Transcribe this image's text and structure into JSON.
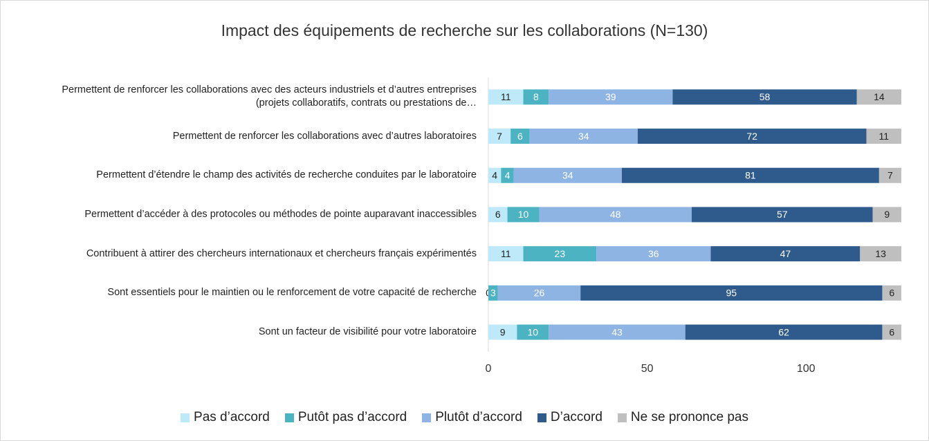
{
  "chart_data": {
    "type": "stacked_barh",
    "title": "Impact des équipements de recherche sur les collaborations (N=130)",
    "categories": [
      "Permettent de renforcer les collaborations avec des acteurs industriels et d’autres entreprises (projets collaboratifs, contrats ou prestations de…",
      "Permettent de renforcer les collaborations avec d’autres laboratoires",
      "Permettent d’étendre le champ des activités de recherche conduites par le laboratoire",
      "Permettent d’accéder à des protocoles ou méthodes de pointe auparavant inaccessibles",
      "Contribuent à attirer des chercheurs internationaux et chercheurs français expérimentés",
      "Sont essentiels pour le maintien ou le renforcement de votre capacité de recherche",
      "Sont un facteur de visibilité pour votre laboratoire"
    ],
    "series": [
      {
        "name": "Pas d’accord",
        "color": "#bde9f8",
        "values": [
          11,
          7,
          4,
          6,
          11,
          0,
          9
        ]
      },
      {
        "name": "Putôt pas d’accord",
        "color": "#4bb3c2",
        "values": [
          8,
          6,
          4,
          10,
          23,
          3,
          10
        ]
      },
      {
        "name": "Plutôt d’accord",
        "color": "#8eb4e3",
        "values": [
          39,
          34,
          34,
          48,
          36,
          26,
          43
        ]
      },
      {
        "name": "D’accord",
        "color": "#2f5b8c",
        "values": [
          58,
          72,
          81,
          57,
          47,
          95,
          62
        ]
      },
      {
        "name": "Ne se prononce pas",
        "color": "#bfbfbf",
        "values": [
          14,
          11,
          7,
          9,
          13,
          6,
          6
        ]
      }
    ],
    "xlim": [
      0,
      130
    ],
    "xticks": [
      0,
      50,
      100
    ],
    "grid": false,
    "legend": "bottom"
  }
}
